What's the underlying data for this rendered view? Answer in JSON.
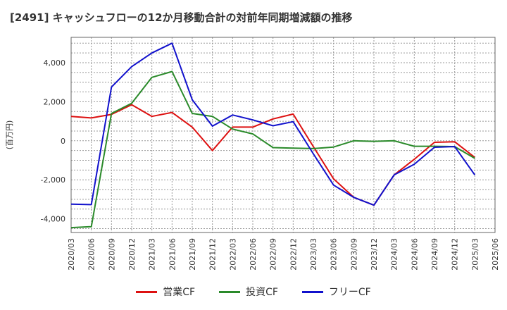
{
  "title": "[2491]  キャッシュフローの12か月移動合計の対前年同期増減額の推移",
  "chart_data": {
    "type": "line",
    "title": "[2491]  キャッシュフローの12か月移動合計の対前年同期増減額の推移",
    "xlabel": "",
    "ylabel": "(百万円)",
    "ylim": [
      -4700,
      5300
    ],
    "yticks": [
      -4000,
      -2000,
      0,
      2000,
      4000
    ],
    "ytick_labels": [
      "-4,000",
      "-2,000",
      "0",
      "2,000",
      "4,000"
    ],
    "x_tick_labels": [
      "2020/03",
      "2020/06",
      "2020/09",
      "2020/12",
      "2021/03",
      "2021/06",
      "2021/09",
      "2021/12",
      "2022/03",
      "2022/06",
      "2022/09",
      "2022/12",
      "2023/03",
      "2023/06",
      "2023/09",
      "2023/12",
      "2024/03",
      "2024/06",
      "2024/09",
      "2024/12",
      "2025/03",
      "2025/06"
    ],
    "grid": true,
    "legend_position": "bottom",
    "series": [
      {
        "name": "営業CF",
        "color": "#dd1111",
        "values": [
          1250,
          1170,
          1350,
          1850,
          1250,
          1450,
          700,
          -500,
          700,
          700,
          1120,
          1370,
          -300,
          -1950,
          -2900,
          -3300,
          -1750,
          -950,
          -80,
          -50,
          -850,
          null
        ]
      },
      {
        "name": "投資CF",
        "color": "#2a8a2a",
        "values": [
          -4450,
          -4400,
          1400,
          1920,
          3250,
          3550,
          1400,
          1250,
          600,
          350,
          -350,
          -380,
          -400,
          -320,
          0,
          -30,
          0,
          -280,
          -280,
          -300,
          -900,
          null
        ]
      },
      {
        "name": "フリーCF",
        "color": "#1111cc",
        "values": [
          -3250,
          -3270,
          2750,
          3800,
          4500,
          5000,
          2100,
          750,
          1320,
          1070,
          770,
          980,
          -670,
          -2270,
          -2900,
          -3300,
          -1750,
          -1200,
          -330,
          -300,
          -1750,
          null
        ]
      }
    ]
  }
}
